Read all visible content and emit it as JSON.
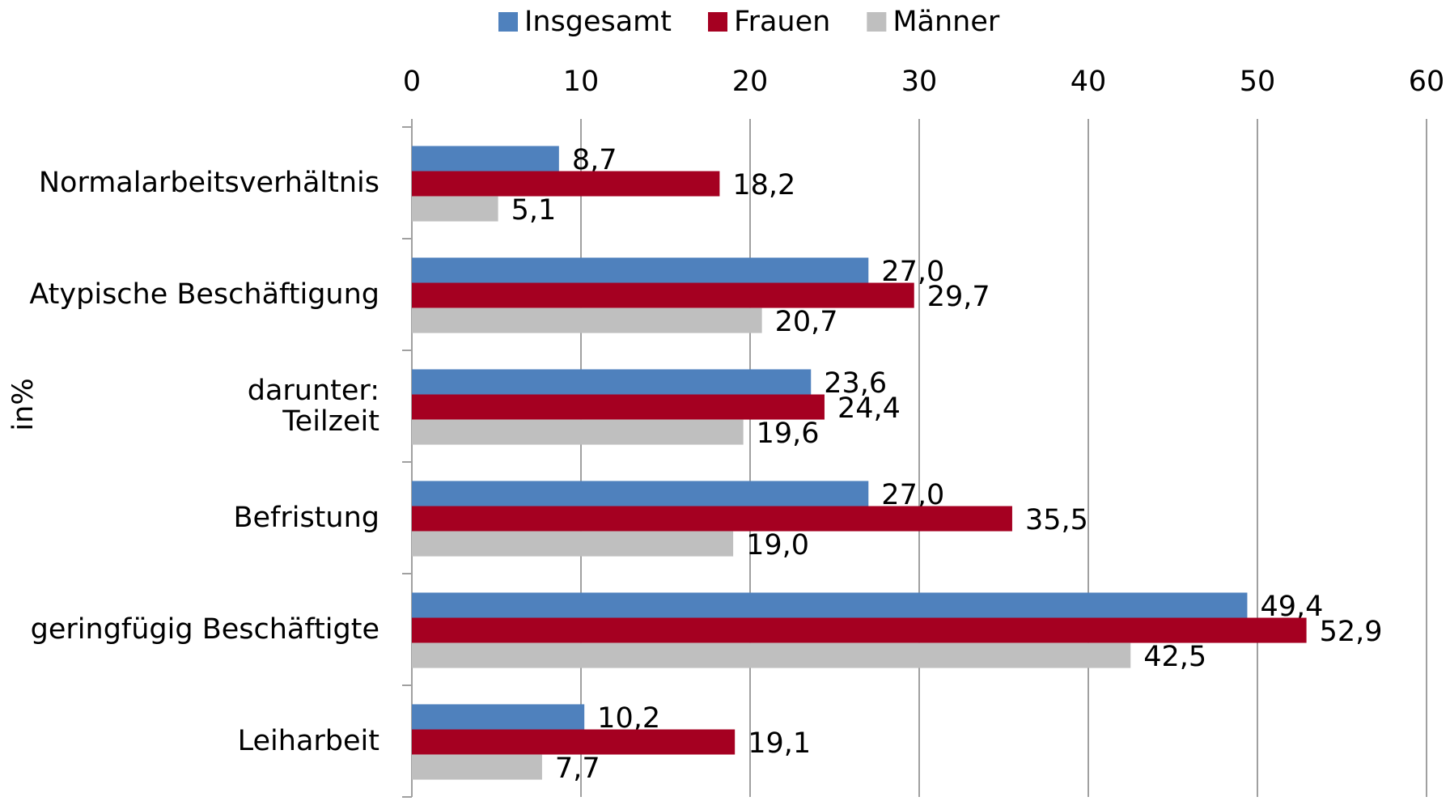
{
  "chart_data": {
    "type": "bar",
    "orientation": "horizontal",
    "y_label": "in%",
    "categories": [
      "Normalarbeitsverhältnis",
      "Atypische Beschäftigung",
      "darunter:\nTeilzeit",
      "Befristung",
      "geringfügig Beschäftigte",
      "Leiharbeit"
    ],
    "series": [
      {
        "name": "Insgesamt",
        "color": "#4f81bd",
        "values": [
          8.7,
          27.0,
          23.6,
          27.0,
          49.4,
          10.2
        ],
        "value_labels": [
          "8,7",
          "27,0",
          "23,6",
          "27,0",
          "49,4",
          "10,2"
        ]
      },
      {
        "name": "Frauen",
        "color": "#a50021",
        "values": [
          18.2,
          29.7,
          24.4,
          35.5,
          52.9,
          19.1
        ],
        "value_labels": [
          "18,2",
          "29,7",
          "24,4",
          "35,5",
          "52,9",
          "19,1"
        ]
      },
      {
        "name": "Männer",
        "color": "#bfbfbf",
        "values": [
          5.1,
          20.7,
          19.6,
          19.0,
          42.5,
          7.7
        ],
        "value_labels": [
          "5,1",
          "20,7",
          "19,6",
          "19,0",
          "42,5",
          "7,7"
        ]
      }
    ],
    "xlim": [
      0,
      60
    ],
    "xticks": [
      0,
      10,
      20,
      30,
      40,
      50,
      60
    ],
    "grid": true,
    "legend": "top"
  }
}
